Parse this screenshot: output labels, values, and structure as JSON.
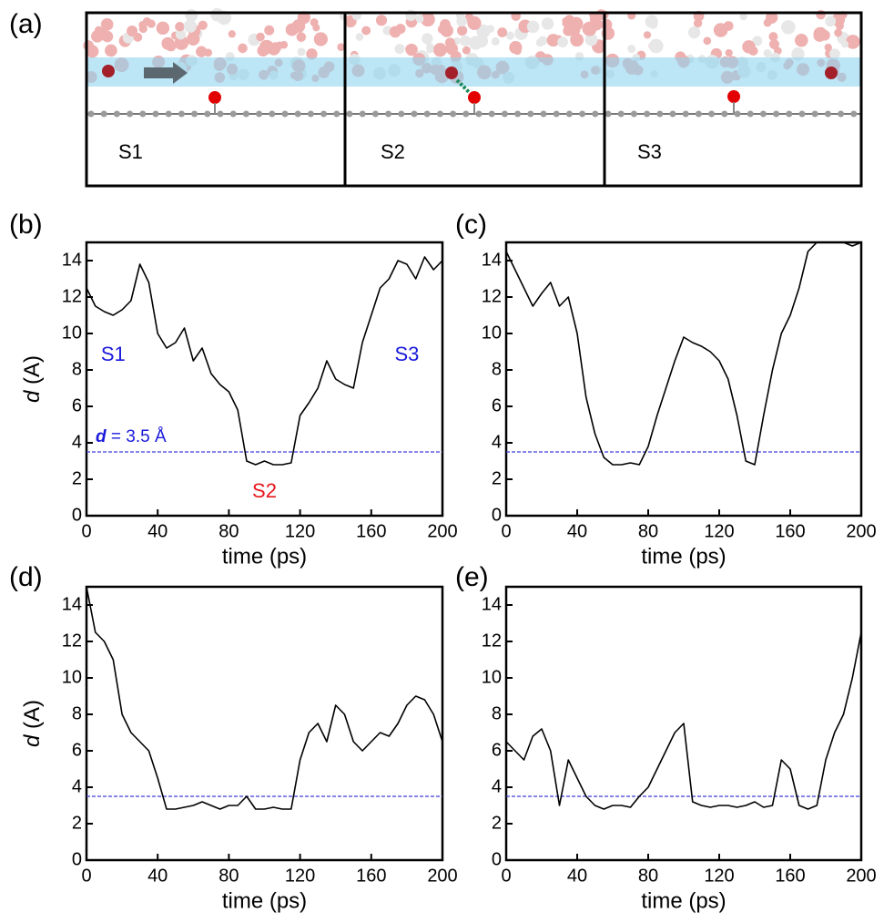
{
  "panel_a": {
    "label": "(a)",
    "states": [
      {
        "text": "S1",
        "color": "#1a1adb"
      },
      {
        "text": "S2",
        "color": "#e8161b"
      },
      {
        "text": "S3",
        "color": "#1a1adb"
      }
    ]
  },
  "chart_data": [
    {
      "panel": "(b)",
      "type": "line",
      "xlabel": "time (ps)",
      "ylabel": [
        "d",
        " (A)"
      ],
      "xlim": [
        0,
        200
      ],
      "xticks": [
        0,
        40,
        80,
        120,
        160,
        200
      ],
      "ylim": [
        0,
        15
      ],
      "yticks": [
        0,
        2,
        4,
        6,
        8,
        10,
        12,
        14
      ],
      "threshold": 3.5,
      "threshold_color": "#3d3ddb",
      "annotations": [
        {
          "parts": [
            "S1"
          ],
          "x": 15,
          "y": 8.8,
          "color": "#1a1adb"
        },
        {
          "parts": [
            "S3"
          ],
          "x": 180,
          "y": 8.8,
          "color": "#1a1adb"
        },
        {
          "parts": [
            "S2"
          ],
          "x": 100,
          "y": 1.3,
          "color": "#e8161b"
        },
        {
          "parts": [
            "d",
            " = 3.5 Å"
          ],
          "x": 25,
          "y": 4.3,
          "color": "#1a1adb"
        }
      ],
      "x": [
        0,
        5,
        10,
        15,
        20,
        25,
        30,
        35,
        40,
        45,
        50,
        55,
        60,
        65,
        70,
        75,
        80,
        85,
        90,
        95,
        100,
        105,
        110,
        115,
        120,
        125,
        130,
        135,
        140,
        145,
        150,
        155,
        160,
        165,
        170,
        175,
        180,
        185,
        190,
        195,
        200
      ],
      "series": [
        {
          "color": "#000000",
          "values": [
            12.5,
            11.5,
            11.2,
            11.0,
            11.3,
            11.8,
            13.8,
            12.8,
            10.0,
            9.2,
            9.5,
            10.3,
            8.5,
            9.2,
            7.8,
            7.2,
            6.8,
            5.8,
            3.0,
            2.8,
            3.0,
            2.8,
            2.8,
            2.9,
            5.5,
            6.2,
            7.0,
            8.5,
            7.5,
            7.2,
            7.0,
            9.5,
            11.0,
            12.5,
            13.0,
            14.0,
            13.8,
            13.0,
            14.2,
            13.5,
            14.0
          ]
        }
      ]
    },
    {
      "panel": "(c)",
      "type": "line",
      "xlabel": "time (ps)",
      "xlim": [
        0,
        200
      ],
      "xticks": [
        0,
        40,
        80,
        120,
        160,
        200
      ],
      "ylim": [
        0,
        15
      ],
      "yticks": [
        0,
        2,
        4,
        6,
        8,
        10,
        12,
        14
      ],
      "threshold": 3.5,
      "threshold_color": "#3d3ddb",
      "x": [
        0,
        5,
        10,
        15,
        20,
        25,
        30,
        35,
        40,
        45,
        50,
        55,
        60,
        65,
        70,
        75,
        80,
        85,
        90,
        95,
        100,
        105,
        110,
        115,
        120,
        125,
        130,
        135,
        140,
        145,
        150,
        155,
        160,
        165,
        170,
        175,
        180,
        185,
        190,
        195,
        200
      ],
      "series": [
        {
          "color": "#000000",
          "values": [
            14.5,
            13.5,
            12.5,
            11.5,
            12.2,
            12.8,
            11.5,
            12.0,
            10.0,
            6.5,
            4.5,
            3.2,
            2.8,
            2.8,
            2.9,
            2.8,
            3.8,
            5.5,
            7.0,
            8.5,
            9.8,
            9.5,
            9.3,
            9.0,
            8.5,
            7.5,
            5.5,
            3.0,
            2.8,
            5.5,
            8.0,
            10.0,
            11.0,
            12.5,
            14.5,
            15.0,
            15.0,
            15.0,
            15.0,
            14.8,
            15.0
          ]
        }
      ]
    },
    {
      "panel": "(d)",
      "type": "line",
      "xlabel": "time (ps)",
      "ylabel": [
        "d",
        " (A)"
      ],
      "xlim": [
        0,
        200
      ],
      "xticks": [
        0,
        40,
        80,
        120,
        160,
        200
      ],
      "ylim": [
        0,
        15
      ],
      "yticks": [
        0,
        2,
        4,
        6,
        8,
        10,
        12,
        14
      ],
      "threshold": 3.5,
      "threshold_color": "#3d3ddb",
      "x": [
        0,
        5,
        10,
        15,
        20,
        25,
        30,
        35,
        40,
        45,
        50,
        55,
        60,
        65,
        70,
        75,
        80,
        85,
        90,
        95,
        100,
        105,
        110,
        115,
        120,
        125,
        130,
        135,
        140,
        145,
        150,
        155,
        160,
        165,
        170,
        175,
        180,
        185,
        190,
        195,
        200
      ],
      "series": [
        {
          "color": "#000000",
          "values": [
            15.0,
            12.5,
            12.0,
            11.0,
            8.0,
            7.0,
            6.5,
            6.0,
            4.5,
            2.8,
            2.8,
            2.9,
            3.0,
            3.2,
            3.0,
            2.8,
            3.0,
            3.0,
            3.5,
            2.8,
            2.8,
            2.9,
            2.8,
            2.8,
            5.5,
            7.0,
            7.5,
            6.5,
            8.5,
            8.0,
            6.5,
            6.0,
            6.5,
            7.0,
            6.8,
            7.5,
            8.5,
            9.0,
            8.8,
            8.0,
            6.5
          ]
        }
      ]
    },
    {
      "panel": "(e)",
      "type": "line",
      "xlabel": "time (ps)",
      "xlim": [
        0,
        200
      ],
      "xticks": [
        0,
        40,
        80,
        120,
        160,
        200
      ],
      "ylim": [
        0,
        15
      ],
      "yticks": [
        0,
        2,
        4,
        6,
        8,
        10,
        12,
        14
      ],
      "threshold": 3.5,
      "threshold_color": "#3d3ddb",
      "x": [
        0,
        5,
        10,
        15,
        20,
        25,
        30,
        35,
        40,
        45,
        50,
        55,
        60,
        65,
        70,
        75,
        80,
        85,
        90,
        95,
        100,
        105,
        110,
        115,
        120,
        125,
        130,
        135,
        140,
        145,
        150,
        155,
        160,
        165,
        170,
        175,
        180,
        185,
        190,
        195,
        200
      ],
      "series": [
        {
          "color": "#000000",
          "values": [
            6.5,
            6.0,
            5.5,
            6.8,
            7.2,
            6.0,
            3.0,
            5.5,
            4.5,
            3.5,
            3.0,
            2.8,
            3.0,
            3.0,
            2.9,
            3.5,
            4.0,
            5.0,
            6.0,
            7.0,
            7.5,
            3.2,
            3.0,
            2.9,
            3.0,
            3.0,
            2.9,
            3.0,
            3.2,
            2.9,
            3.0,
            5.5,
            5.0,
            3.0,
            2.8,
            3.0,
            5.5,
            7.0,
            8.0,
            10.0,
            12.5
          ]
        }
      ]
    }
  ]
}
